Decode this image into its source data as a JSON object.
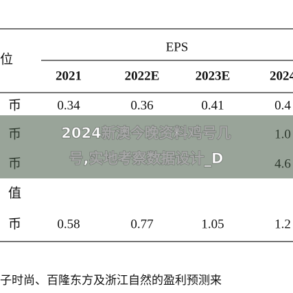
{
  "table": {
    "unit_label": "位",
    "group_header": "EPS",
    "years": [
      "2021",
      "2022E",
      "2023E",
      "2024"
    ],
    "rows": [
      {
        "label": "币",
        "cells": [
          "0.34",
          "0.36",
          "0.41",
          "0.4"
        ]
      },
      {
        "label": "币",
        "cells": [
          null,
          null,
          null,
          "1.0"
        ]
      },
      {
        "label": "币",
        "cells": [
          null,
          null,
          null,
          "4.6"
        ]
      },
      {
        "label": "值",
        "cells": [
          null,
          null,
          null,
          null
        ]
      },
      {
        "label": "币",
        "cells": [
          "0.58",
          "0.77",
          "1.05",
          "1.2"
        ]
      }
    ],
    "footnote": "子时尚、百隆东方及浙江自然的盈利预测来"
  },
  "overlay": {
    "lines": [
      "2024新澳今晚资料鸡号几",
      "号,实地考察数据设计_D"
    ]
  }
}
